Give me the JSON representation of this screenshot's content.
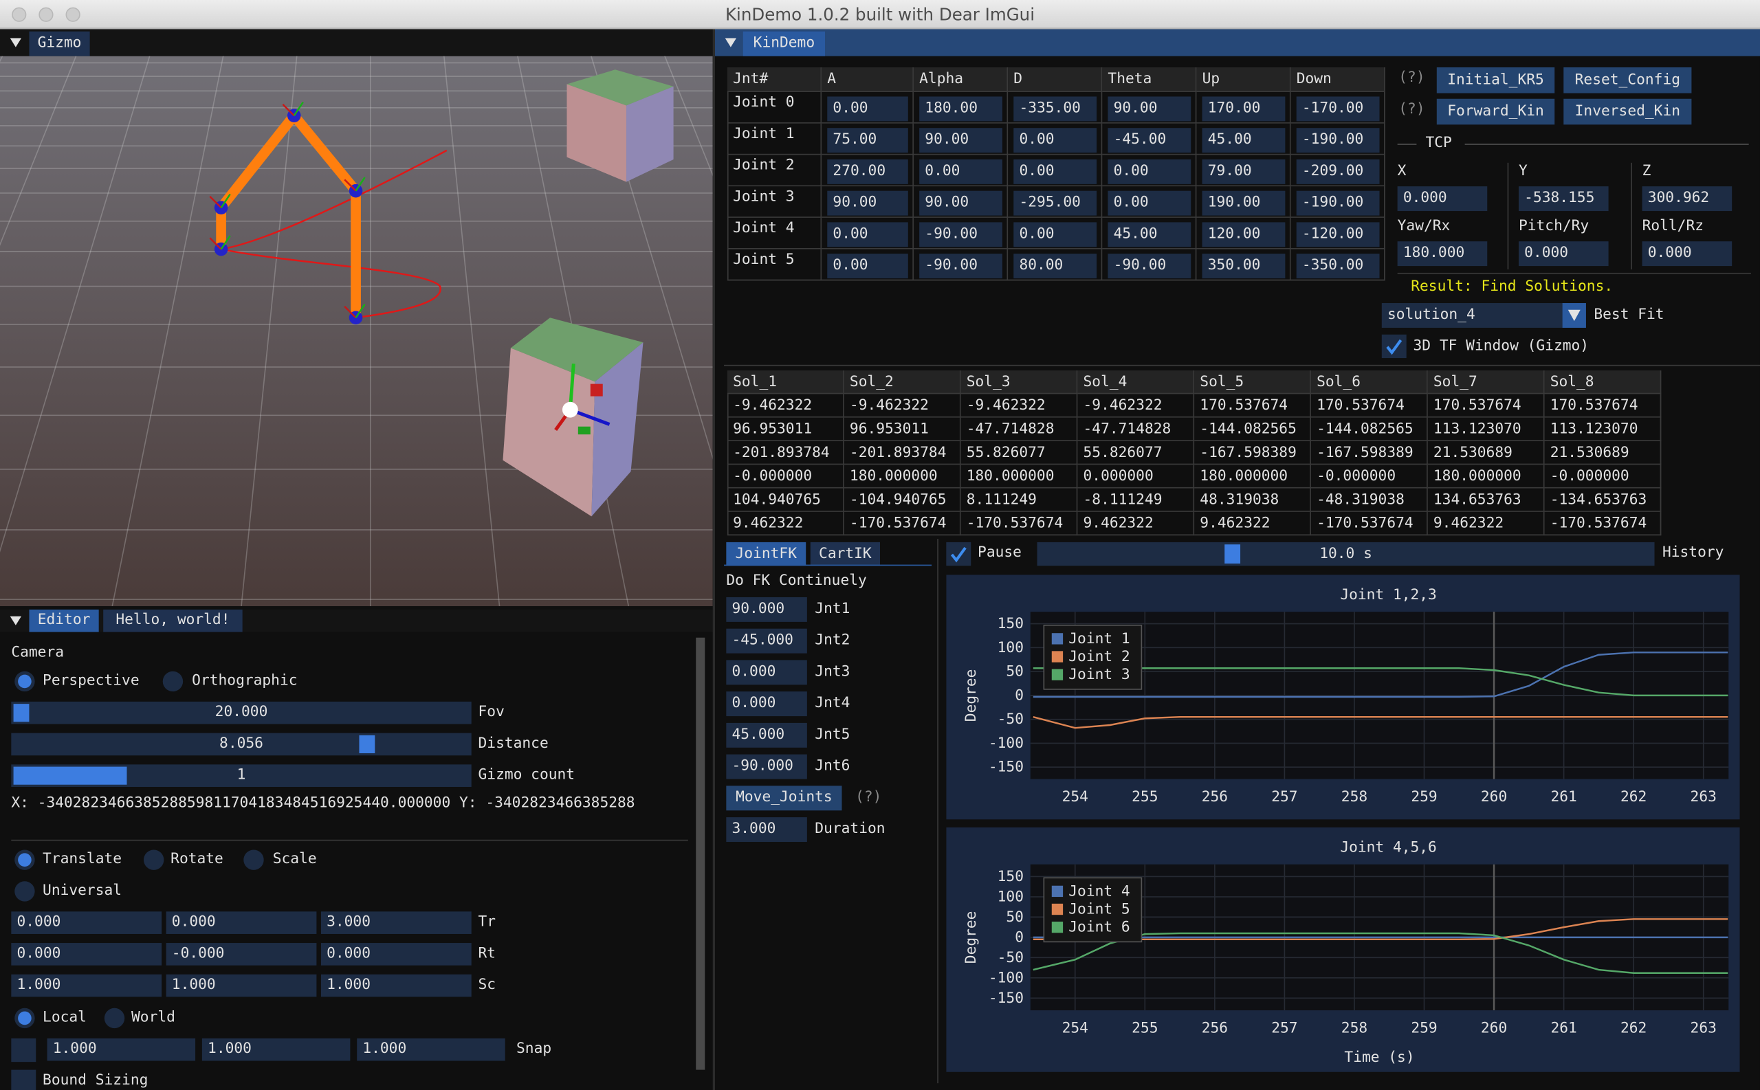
{
  "window_title": "KinDemo 1.0.2 built with Dear ImGui",
  "gizmo": {
    "tab": "Gizmo"
  },
  "editor": {
    "tabs": [
      "Editor",
      "Hello, world!"
    ],
    "camera": "Camera",
    "projection": [
      "Perspective",
      "Orthographic"
    ],
    "sliders": [
      {
        "value": "20.000",
        "label": "Fov"
      },
      {
        "value": "8.056",
        "label": "Distance"
      },
      {
        "value": "1",
        "label": "Gizmo count"
      }
    ],
    "mouse": "X: -340282346638528859811704183484516925440.000000 Y: -3402823466385288",
    "operations": [
      "Translate",
      "Rotate",
      "Scale",
      "Universal"
    ],
    "matrix": [
      {
        "values": [
          "0.000",
          "0.000",
          "3.000"
        ],
        "label": "Tr"
      },
      {
        "values": [
          "0.000",
          "-0.000",
          "0.000"
        ],
        "label": "Rt"
      },
      {
        "values": [
          "1.000",
          "1.000",
          "1.000"
        ],
        "label": "Sc"
      }
    ],
    "space": [
      "Local",
      "World"
    ],
    "snap": {
      "values": [
        "1.000",
        "1.000",
        "1.000"
      ],
      "label": "Snap"
    },
    "bound": "Bound Sizing"
  },
  "kindemo": {
    "tab": "KinDemo",
    "joints": {
      "header": [
        "Jnt#",
        "A",
        "Alpha",
        "D",
        "Theta",
        "Up",
        "Down"
      ],
      "rows": [
        [
          "Joint 0",
          "0.00",
          "180.00",
          "-335.00",
          "90.00",
          "170.00",
          "-170.00"
        ],
        [
          "Joint 1",
          "75.00",
          "90.00",
          "0.00",
          "-45.00",
          "45.00",
          "-190.00"
        ],
        [
          "Joint 2",
          "270.00",
          "0.00",
          "0.00",
          "0.00",
          "79.00",
          "-209.00"
        ],
        [
          "Joint 3",
          "90.00",
          "90.00",
          "-295.00",
          "0.00",
          "190.00",
          "-190.00"
        ],
        [
          "Joint 4",
          "0.00",
          "-90.00",
          "0.00",
          "45.00",
          "120.00",
          "-120.00"
        ],
        [
          "Joint 5",
          "0.00",
          "-90.00",
          "80.00",
          "-90.00",
          "350.00",
          "-350.00"
        ]
      ]
    },
    "help": "(?)",
    "buttons": [
      "Initial_KR5",
      "Reset_Config",
      "Forward_Kin",
      "Inversed_Kin"
    ],
    "tcp": {
      "title": "TCP",
      "labels": [
        "X",
        "Y",
        "Z",
        "Yaw/Rx",
        "Pitch/Ry",
        "Roll/Rz"
      ],
      "values": [
        "0.000",
        "-538.155",
        "300.962",
        "180.000",
        "0.000",
        "0.000"
      ]
    },
    "result": "Result: Find Solutions.",
    "solution": "solution_4",
    "best_fit": "Best Fit",
    "tf_window": "3D TF Window (Gizmo)",
    "solutions": {
      "header": [
        "Sol_1",
        "Sol_2",
        "Sol_3",
        "Sol_4",
        "Sol_5",
        "Sol_6",
        "Sol_7",
        "Sol_8"
      ],
      "rows": [
        [
          "-9.462322",
          "-9.462322",
          "-9.462322",
          "-9.462322",
          "170.537674",
          "170.537674",
          "170.537674",
          "170.537674"
        ],
        [
          "96.953011",
          "96.953011",
          "-47.714828",
          "-47.714828",
          "-144.082565",
          "-144.082565",
          "113.123070",
          "113.123070"
        ],
        [
          "-201.893784",
          "-201.893784",
          "55.826077",
          "55.826077",
          "-167.598389",
          "-167.598389",
          "21.530689",
          "21.530689"
        ],
        [
          "-0.000000",
          "180.000000",
          "180.000000",
          "0.000000",
          "180.000000",
          "-0.000000",
          "180.000000",
          "-0.000000"
        ],
        [
          "104.940765",
          "-104.940765",
          "8.111249",
          "-8.111249",
          "48.319038",
          "-48.319038",
          "134.653763",
          "-134.653763"
        ],
        [
          "9.462322",
          "-170.537674",
          "-170.537674",
          "9.462322",
          "9.462322",
          "-170.537674",
          "9.462322",
          "-170.537674"
        ]
      ]
    },
    "tabs": [
      "JointFK",
      "CartIK"
    ],
    "pause": "Pause",
    "history_value": "10.0 s",
    "history": "History",
    "fk": {
      "title": "Do FK Continuely",
      "inputs": [
        {
          "value": "90.000",
          "label": "Jnt1"
        },
        {
          "value": "-45.000",
          "label": "Jnt2"
        },
        {
          "value": "0.000",
          "label": "Jnt3"
        },
        {
          "value": "0.000",
          "label": "Jnt4"
        },
        {
          "value": "45.000",
          "label": "Jnt5"
        },
        {
          "value": "-90.000",
          "label": "Jnt6"
        }
      ],
      "button": "Move_Joints",
      "help": "(?)",
      "duration": {
        "value": "3.000",
        "label": "Duration"
      }
    }
  },
  "plots": [
    {
      "type": "line",
      "title": "Joint 1,2,3",
      "ylabel": "Degree",
      "x": [
        253.4,
        254,
        254.5,
        255,
        255.5,
        256,
        256.5,
        257,
        257.5,
        258,
        258.5,
        259,
        259.5,
        260,
        260.5,
        261,
        261.5,
        262,
        262.5,
        263,
        263.35
      ],
      "series": [
        {
          "name": "Joint 1",
          "color": "#4c72b0",
          "values": [
            -3,
            -3,
            -3,
            -3,
            -3,
            -3,
            -3,
            -3,
            -3,
            -3,
            -3,
            -3,
            -3,
            -2,
            20,
            60,
            85,
            90,
            90,
            90,
            90
          ]
        },
        {
          "name": "Joint 2",
          "color": "#dd8452",
          "values": [
            -45,
            -68,
            -62,
            -48,
            -45,
            -45,
            -45,
            -45,
            -45,
            -45,
            -45,
            -45,
            -45,
            -45,
            -45,
            -45,
            -45,
            -45,
            -45,
            -45,
            -45
          ]
        },
        {
          "name": "Joint 3",
          "color": "#55a868",
          "values": [
            57,
            57,
            57,
            57,
            57,
            57,
            57,
            57,
            57,
            57,
            57,
            57,
            57,
            53,
            42,
            22,
            6,
            0,
            0,
            0,
            0
          ]
        }
      ],
      "xlim": [
        253.36,
        263.36
      ],
      "ylim": [
        -175,
        175
      ],
      "xticks": [
        254,
        255,
        256,
        257,
        258,
        259,
        260,
        261,
        262,
        263
      ],
      "yticks": [
        150,
        100,
        50,
        0,
        -50,
        -100,
        -150
      ],
      "vline": 260,
      "grid": true,
      "legend": "top-left"
    },
    {
      "type": "line",
      "title": "Joint 4,5,6",
      "ylabel": "Degree",
      "xlabel": "Time (s)",
      "x": [
        253.4,
        254,
        254.5,
        255,
        255.5,
        256,
        256.5,
        257,
        257.5,
        258,
        258.5,
        259,
        259.5,
        260,
        260.5,
        261,
        261.5,
        262,
        262.5,
        263,
        263.35
      ],
      "series": [
        {
          "name": "Joint 4",
          "color": "#4c72b0",
          "values": [
            0,
            0,
            0,
            0,
            0,
            0,
            0,
            0,
            0,
            0,
            0,
            0,
            0,
            0,
            0,
            0,
            0,
            0,
            0,
            0,
            0
          ]
        },
        {
          "name": "Joint 5",
          "color": "#dd8452",
          "values": [
            -5,
            -5,
            -5,
            -5,
            -5,
            -5,
            -5,
            -5,
            -5,
            -5,
            -5,
            -5,
            -5,
            -4,
            8,
            25,
            40,
            45,
            45,
            45,
            45
          ]
        },
        {
          "name": "Joint 6",
          "color": "#55a868",
          "values": [
            -80,
            -55,
            -15,
            8,
            10,
            10,
            10,
            10,
            10,
            10,
            10,
            10,
            10,
            5,
            -20,
            -55,
            -80,
            -88,
            -88,
            -88,
            -88
          ]
        }
      ],
      "xlim": [
        253.36,
        263.36
      ],
      "ylim": [
        -180,
        180
      ],
      "xticks": [
        254,
        255,
        256,
        257,
        258,
        259,
        260,
        261,
        262,
        263
      ],
      "yticks": [
        150,
        100,
        50,
        0,
        -50,
        -100,
        -150
      ],
      "vline": 260,
      "grid": true,
      "legend": "top-left"
    }
  ]
}
